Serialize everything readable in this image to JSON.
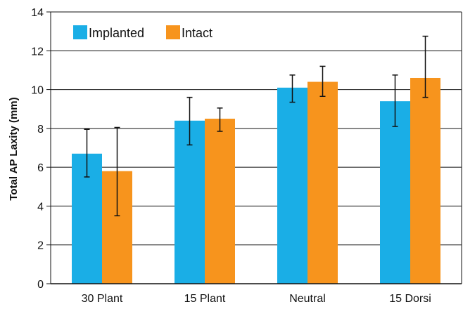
{
  "chart_data": {
    "type": "bar",
    "title": "",
    "xlabel": "",
    "ylabel": "Total AP Laxity (mm)",
    "ylim": [
      0,
      14
    ],
    "yticks": [
      0,
      2,
      4,
      6,
      8,
      10,
      12,
      14
    ],
    "grid": "horizontal",
    "legend_position": "top-left",
    "categories": [
      "30 Plant",
      "15 Plant",
      "Neutral",
      "15 Dorsi"
    ],
    "series": [
      {
        "name": "Implanted",
        "color": "#1aaee6",
        "values": [
          6.7,
          8.4,
          10.1,
          9.4
        ],
        "error_low": [
          5.5,
          7.15,
          9.35,
          8.1
        ],
        "error_high": [
          7.95,
          9.6,
          10.75,
          10.75
        ]
      },
      {
        "name": "Intact",
        "color": "#f7941d",
        "values": [
          5.8,
          8.5,
          10.4,
          10.6
        ],
        "error_low": [
          3.5,
          7.85,
          9.65,
          9.6
        ],
        "error_high": [
          8.05,
          9.05,
          11.2,
          12.75
        ]
      }
    ]
  }
}
